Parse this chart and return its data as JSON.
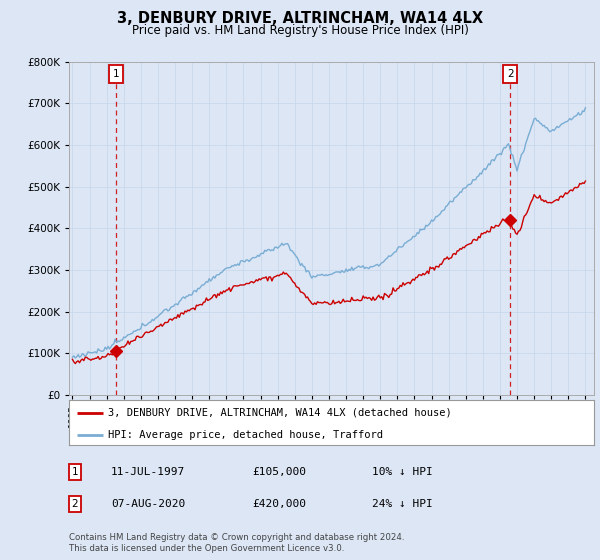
{
  "title": "3, DENBURY DRIVE, ALTRINCHAM, WA14 4LX",
  "subtitle": "Price paid vs. HM Land Registry's House Price Index (HPI)",
  "hpi_label": "HPI: Average price, detached house, Trafford",
  "property_label": "3, DENBURY DRIVE, ALTRINCHAM, WA14 4LX (detached house)",
  "sale1_date": "11-JUL-1997",
  "sale1_price": 105000,
  "sale1_note": "10% ↓ HPI",
  "sale1_x": 1997.54,
  "sale2_date": "07-AUG-2020",
  "sale2_price": 420000,
  "sale2_note": "24% ↓ HPI",
  "sale2_x": 2020.6,
  "footer": "Contains HM Land Registry data © Crown copyright and database right 2024.\nThis data is licensed under the Open Government Licence v3.0.",
  "bg_color": "#dce6f5",
  "plot_bg_color": "#dce6f5",
  "legend_bg": "#ffffff",
  "hpi_color": "#7aadd4",
  "property_color": "#cc0000",
  "ylim": [
    0,
    800000
  ],
  "yticks": [
    0,
    100000,
    200000,
    300000,
    400000,
    500000,
    600000,
    700000,
    800000
  ],
  "xlim_start": 1994.8,
  "xlim_end": 2025.5,
  "years_start": 1995,
  "years_end": 2025
}
